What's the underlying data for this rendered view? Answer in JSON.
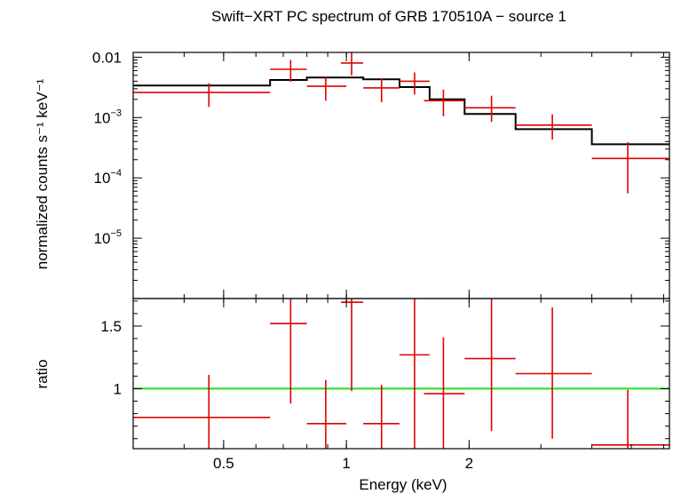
{
  "chart_data": {
    "type": "line",
    "title": "Swift−XRT PC spectrum of GRB 170510A − source 1",
    "xlabel": "Energy (keV)",
    "x_scale": "log",
    "xlim": [
      0.3,
      6.2
    ],
    "x_ticks": [
      {
        "value": 0.5,
        "label": "0.5"
      },
      {
        "value": 1,
        "label": "1"
      },
      {
        "value": 2,
        "label": "2"
      }
    ],
    "top_panel": {
      "ylabel": "normalized counts s⁻¹ keV⁻¹",
      "y_scale": "log",
      "ylim": [
        1e-06,
        0.012
      ],
      "y_ticks": [
        {
          "value": 0.01,
          "base": "0.01",
          "exp": ""
        },
        {
          "value": 0.001,
          "base": "10",
          "exp": "−3"
        },
        {
          "value": 0.0001,
          "base": "10",
          "exp": "−4"
        },
        {
          "value": 1e-05,
          "base": "10",
          "exp": "−5"
        }
      ],
      "data": [
        {
          "x_lo": 0.3,
          "x_hi": 0.65,
          "x": 0.46,
          "y": 0.0026,
          "y_lo": 0.0015,
          "y_hi": 0.0037
        },
        {
          "x_lo": 0.65,
          "x_hi": 0.8,
          "x": 0.73,
          "y": 0.0063,
          "y_lo": 0.0039,
          "y_hi": 0.009
        },
        {
          "x_lo": 0.8,
          "x_hi": 1.0,
          "x": 0.89,
          "y": 0.0033,
          "y_lo": 0.0019,
          "y_hi": 0.0048
        },
        {
          "x_lo": 0.97,
          "x_hi": 1.1,
          "x": 1.03,
          "y": 0.008,
          "y_lo": 0.005,
          "y_hi": 0.012
        },
        {
          "x_lo": 1.1,
          "x_hi": 1.35,
          "x": 1.22,
          "y": 0.0031,
          "y_lo": 0.0018,
          "y_hi": 0.0045
        },
        {
          "x_lo": 1.35,
          "x_hi": 1.6,
          "x": 1.47,
          "y": 0.004,
          "y_lo": 0.0024,
          "y_hi": 0.0056
        },
        {
          "x_lo": 1.55,
          "x_hi": 1.95,
          "x": 1.73,
          "y": 0.0019,
          "y_lo": 0.00105,
          "y_hi": 0.0029
        },
        {
          "x_lo": 1.95,
          "x_hi": 2.6,
          "x": 2.27,
          "y": 0.00145,
          "y_lo": 0.00085,
          "y_hi": 0.0023
        },
        {
          "x_lo": 2.6,
          "x_hi": 4.0,
          "x": 3.2,
          "y": 0.00075,
          "y_lo": 0.00043,
          "y_hi": 0.00113
        },
        {
          "x_lo": 4.0,
          "x_hi": 6.2,
          "x": 4.9,
          "y": 0.00021,
          "y_lo": 5.54e-05,
          "y_hi": 0.00039
        }
      ],
      "model_steps": [
        {
          "x_lo": 0.3,
          "x_hi": 0.65,
          "y": 0.0034
        },
        {
          "x_lo": 0.65,
          "x_hi": 0.8,
          "y": 0.0042
        },
        {
          "x_lo": 0.8,
          "x_hi": 1.1,
          "y": 0.0046
        },
        {
          "x_lo": 1.1,
          "x_hi": 1.35,
          "y": 0.0043
        },
        {
          "x_lo": 1.35,
          "x_hi": 1.6,
          "y": 0.0032
        },
        {
          "x_lo": 1.6,
          "x_hi": 1.95,
          "y": 0.002
        },
        {
          "x_lo": 1.95,
          "x_hi": 2.6,
          "y": 0.00115
        },
        {
          "x_lo": 2.6,
          "x_hi": 4.0,
          "y": 0.00064
        },
        {
          "x_lo": 4.0,
          "x_hi": 6.2,
          "y": 0.00036
        }
      ]
    },
    "bottom_panel": {
      "ylabel": "ratio",
      "y_scale": "linear",
      "ylim": [
        0.52,
        1.72
      ],
      "y_ticks": [
        {
          "value": 1,
          "label": "1"
        },
        {
          "value": 1.5,
          "label": "1.5"
        }
      ],
      "reference_line": 1,
      "data": [
        {
          "x_lo": 0.3,
          "x_hi": 0.65,
          "x": 0.46,
          "y": 0.77,
          "y_lo": 0.52,
          "y_hi": 1.11
        },
        {
          "x_lo": 0.65,
          "x_hi": 0.8,
          "x": 0.73,
          "y": 1.52,
          "y_lo": 0.88,
          "y_hi": 1.72
        },
        {
          "x_lo": 0.8,
          "x_hi": 1.0,
          "x": 0.89,
          "y": 0.72,
          "y_lo": 0.52,
          "y_hi": 1.07
        },
        {
          "x_lo": 0.97,
          "x_hi": 1.1,
          "x": 1.03,
          "y": 1.69,
          "y_lo": 0.98,
          "y_hi": 1.72
        },
        {
          "x_lo": 1.1,
          "x_hi": 1.35,
          "x": 1.22,
          "y": 0.72,
          "y_lo": 0.52,
          "y_hi": 1.03
        },
        {
          "x_lo": 1.35,
          "x_hi": 1.6,
          "x": 1.47,
          "y": 1.27,
          "y_lo": 0.52,
          "y_hi": 1.72
        },
        {
          "x_lo": 1.55,
          "x_hi": 1.95,
          "x": 1.73,
          "y": 0.96,
          "y_lo": 0.52,
          "y_hi": 1.41
        },
        {
          "x_lo": 1.95,
          "x_hi": 2.6,
          "x": 2.27,
          "y": 1.24,
          "y_lo": 0.66,
          "y_hi": 1.72
        },
        {
          "x_lo": 2.6,
          "x_hi": 4.0,
          "x": 3.2,
          "y": 1.12,
          "y_lo": 0.6,
          "y_hi": 1.65
        },
        {
          "x_lo": 4.0,
          "x_hi": 6.2,
          "x": 4.9,
          "y": 0.55,
          "y_lo": 0.52,
          "y_hi": 0.99
        }
      ]
    },
    "colors": {
      "data": "#e00000",
      "model": "#000000",
      "reference": "#22dd22",
      "axes": "#000000"
    }
  }
}
